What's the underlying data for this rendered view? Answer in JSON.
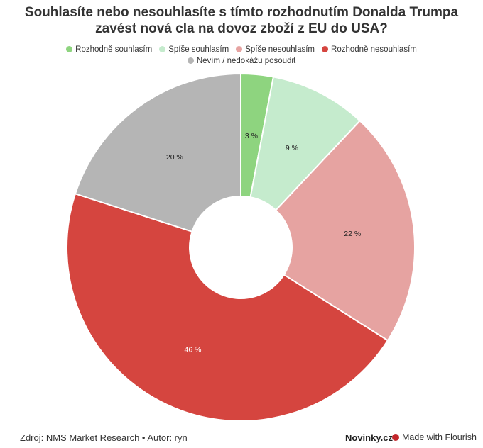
{
  "title_line1": "Souhlasíte nebo nesouhlasíte s tímto rozhodnutím Donalda Trumpa",
  "title_line2": "zavést nová cla na dovoz zboží z EU do USA?",
  "chart_data": {
    "type": "pie",
    "donut": true,
    "categories": [
      "Rozhodně souhlasím",
      "Spíše souhlasím",
      "Spíše nesouhlasím",
      "Rozhodně nesouhlasím",
      "Nevím / nedokážu posoudit"
    ],
    "values": [
      3,
      9,
      22,
      46,
      20
    ],
    "labels": [
      "3 %",
      "9 %",
      "22 %",
      "46 %",
      "20 %"
    ],
    "colors": [
      "#8ed47f",
      "#c5ebcd",
      "#e6a3a1",
      "#d5453f",
      "#b5b5b5"
    ],
    "legend_position": "top"
  },
  "footer": {
    "source": "Zdroj: NMS Market Research • Autor: ryn",
    "brand": "Novinky.cz",
    "made_with": "Made with Flourish"
  }
}
